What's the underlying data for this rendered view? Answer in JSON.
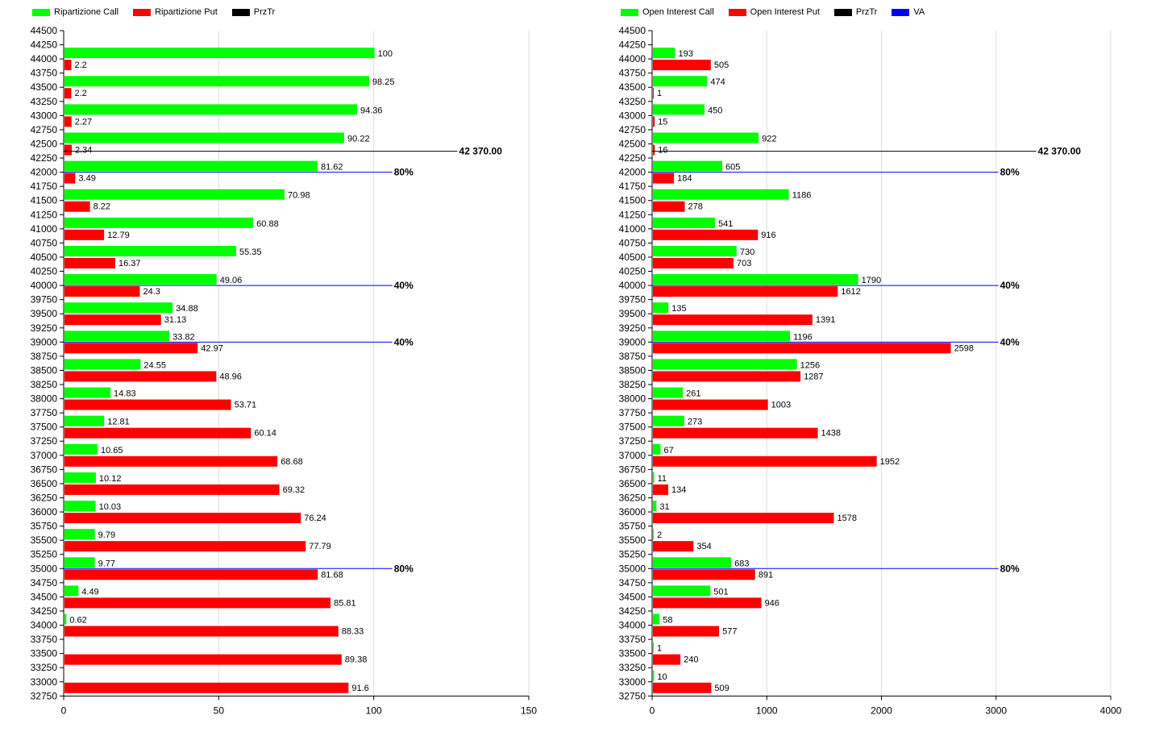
{
  "colors": {
    "call": "#00ff00",
    "put": "#ff0000",
    "prztr": "#000000",
    "va": "#0000ff",
    "grid": "#dcdcdc",
    "axis": "#000000"
  },
  "chart_data": [
    {
      "type": "bar",
      "orientation": "horizontal",
      "title": "",
      "legend": [
        "Ripartizione Call",
        "Ripartizione Put",
        "PrzTr"
      ],
      "legend_placement": "top-left",
      "y_ticks": [
        "44500",
        "44250",
        "44000",
        "43750",
        "43500",
        "43250",
        "43000",
        "42750",
        "42500",
        "42250",
        "42000",
        "41750",
        "41500",
        "41250",
        "41000",
        "40750",
        "40500",
        "40250",
        "40000",
        "39750",
        "39500",
        "39250",
        "39000",
        "38750",
        "38500",
        "38250",
        "38000",
        "37750",
        "37500",
        "37250",
        "37000",
        "36750",
        "36500",
        "36250",
        "36000",
        "35750",
        "35500",
        "35250",
        "35000",
        "34750",
        "34500",
        "34250",
        "34000",
        "33750",
        "33500",
        "33250",
        "33000",
        "32750"
      ],
      "x_ticks": [
        "0",
        "50",
        "100",
        "150"
      ],
      "xlim": [
        0,
        150
      ],
      "grid": "vertical",
      "categories": [
        "44000",
        "43500",
        "43000",
        "42500",
        "42000",
        "41500",
        "41000",
        "40500",
        "40000",
        "39500",
        "39000",
        "38500",
        "38000",
        "37500",
        "37000",
        "36500",
        "36000",
        "35500",
        "35000",
        "34500",
        "34000",
        "33500",
        "33000"
      ],
      "series": [
        {
          "name": "Ripartizione Call",
          "color": "#00ff00",
          "values": [
            100,
            98.25,
            94.36,
            90.22,
            81.62,
            70.98,
            60.88,
            55.35,
            49.06,
            34.88,
            33.82,
            24.55,
            14.83,
            12.81,
            10.65,
            10.12,
            10.03,
            9.79,
            9.77,
            4.49,
            0.62,
            null,
            null
          ],
          "labels": [
            "100",
            "98.25",
            "94.36",
            "90.22",
            "81.62",
            "70.98",
            "60.88",
            "55.35",
            "49.06",
            "34.88",
            "33.82",
            "24.55",
            "14.83",
            "12.81",
            "10.65",
            "10.12",
            "10.03",
            "9.79",
            "9.77",
            "4.49",
            "0.62",
            "",
            ""
          ]
        },
        {
          "name": "Ripartizione Put",
          "color": "#ff0000",
          "values": [
            2.2,
            2.2,
            2.27,
            2.34,
            3.49,
            8.22,
            12.79,
            16.37,
            24.3,
            31.13,
            42.97,
            48.96,
            53.71,
            60.14,
            68.68,
            69.32,
            76.24,
            77.79,
            81.68,
            85.81,
            88.33,
            89.38,
            91.6
          ],
          "labels": [
            "2.2",
            "2.2",
            "2.27",
            "2.34",
            "3.49",
            "8.22",
            "12.79",
            "16.37",
            "24.3",
            "31.13",
            "42.97",
            "48.96",
            "53.71",
            "60.14",
            "68.68",
            "69.32",
            "76.24",
            "77.79",
            "81.68",
            "85.81",
            "88.33",
            "89.38",
            "91.6"
          ]
        }
      ],
      "reference_lines": [
        {
          "strike": 42370,
          "label": "42 370.00",
          "x_end": 127,
          "color": "#000000"
        },
        {
          "strike": 42000,
          "label": "80%",
          "x_end": 106,
          "color": "#0000ff"
        },
        {
          "strike": 40000,
          "label": "40%",
          "x_end": 106,
          "color": "#0000ff"
        },
        {
          "strike": 39000,
          "label": "40%",
          "x_end": 106,
          "color": "#0000ff"
        },
        {
          "strike": 35000,
          "label": "80%",
          "x_end": 106,
          "color": "#0000ff"
        }
      ]
    },
    {
      "type": "bar",
      "orientation": "horizontal",
      "title": "",
      "legend": [
        "Open Interest Call",
        "Open Interest Put",
        "PrzTr",
        "VA"
      ],
      "legend_placement": "top-left",
      "y_ticks": [
        "44500",
        "44250",
        "44000",
        "43750",
        "43500",
        "43250",
        "43000",
        "42750",
        "42500",
        "42250",
        "42000",
        "41750",
        "41500",
        "41250",
        "41000",
        "40750",
        "40500",
        "40250",
        "40000",
        "39750",
        "39500",
        "39250",
        "39000",
        "38750",
        "38500",
        "38250",
        "38000",
        "37750",
        "37500",
        "37250",
        "37000",
        "36750",
        "36500",
        "36250",
        "36000",
        "35750",
        "35500",
        "35250",
        "35000",
        "34750",
        "34500",
        "34250",
        "34000",
        "33750",
        "33500",
        "33250",
        "33000",
        "32750"
      ],
      "x_ticks": [
        "0",
        "1000",
        "2000",
        "3000",
        "4000"
      ],
      "xlim": [
        0,
        4000
      ],
      "grid": "vertical",
      "categories": [
        "44000",
        "43500",
        "43000",
        "42500",
        "42000",
        "41500",
        "41000",
        "40500",
        "40000",
        "39500",
        "39000",
        "38500",
        "38000",
        "37500",
        "37000",
        "36500",
        "36000",
        "35500",
        "35000",
        "34500",
        "34000",
        "33500",
        "33000"
      ],
      "series": [
        {
          "name": "Open Interest Call",
          "color": "#00ff00",
          "values": [
            193,
            474,
            450,
            922,
            605,
            1186,
            541,
            730,
            1790,
            135,
            1196,
            1256,
            261,
            273,
            67,
            11,
            31,
            2,
            683,
            501,
            58,
            1,
            10
          ],
          "labels": [
            "193",
            "474",
            "450",
            "922",
            "605",
            "1186",
            "541",
            "730",
            "1790",
            "135",
            "1196",
            "1256",
            "261",
            "273",
            "67",
            "11",
            "31",
            "2",
            "683",
            "501",
            "58",
            "1",
            "10"
          ]
        },
        {
          "name": "Open Interest Put",
          "color": "#ff0000",
          "values": [
            505,
            1,
            15,
            16,
            184,
            278,
            916,
            703,
            1612,
            1391,
            2598,
            1287,
            1003,
            1438,
            1952,
            134,
            1578,
            354,
            891,
            946,
            577,
            240,
            509
          ],
          "labels": [
            "505",
            "1",
            "15",
            "16",
            "184",
            "278",
            "916",
            "703",
            "1612",
            "1391",
            "2598",
            "1287",
            "1003",
            "1438",
            "1952",
            "134",
            "1578",
            "354",
            "891",
            "946",
            "577",
            "240",
            "509"
          ]
        }
      ],
      "reference_lines": [
        {
          "strike": 42370,
          "label": "42 370.00",
          "x_end": 3350,
          "color": "#000000"
        },
        {
          "strike": 42000,
          "label": "80%",
          "x_end": 3020,
          "color": "#0000ff"
        },
        {
          "strike": 40000,
          "label": "40%",
          "x_end": 3020,
          "color": "#0000ff"
        },
        {
          "strike": 39000,
          "label": "40%",
          "x_end": 3020,
          "color": "#0000ff"
        },
        {
          "strike": 35000,
          "label": "80%",
          "x_end": 3020,
          "color": "#0000ff"
        }
      ]
    }
  ]
}
